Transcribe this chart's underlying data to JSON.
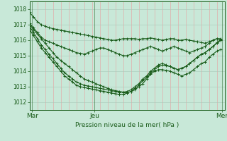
{
  "bg_color": "#c8e8d8",
  "plot_bg_color": "#c8e8d8",
  "grid_color_v": "#e8a0a0",
  "grid_color_h": "#a8c8b8",
  "line_color": "#1a5c1a",
  "marker": "+",
  "marker_size": 3,
  "xlabel": "Pression niveau de la mer( hPa )",
  "yticks": [
    1012,
    1013,
    1014,
    1015,
    1016,
    1017,
    1018
  ],
  "ylim": [
    1011.5,
    1018.5
  ],
  "xtick_labels": [
    "Mar",
    "Jeu",
    "Mer"
  ],
  "xtick_positions": [
    2,
    50,
    148
  ],
  "vline_positions": [
    2,
    50,
    148
  ],
  "total_steps": 168,
  "lines": [
    [
      1017.8,
      1017.5,
      1017.2,
      1017.0,
      1016.9,
      1016.8,
      1016.75,
      1016.7,
      1016.65,
      1016.6,
      1016.55,
      1016.5,
      1016.45,
      1016.4,
      1016.35,
      1016.3,
      1016.25,
      1016.2,
      1016.15,
      1016.1,
      1016.05,
      1016.0,
      1016.0,
      1016.05,
      1016.1,
      1016.1,
      1016.1,
      1016.1,
      1016.05,
      1016.1,
      1016.1,
      1016.15,
      1016.1,
      1016.05,
      1016.0,
      1016.05,
      1016.1,
      1016.1,
      1016.0,
      1016.0,
      1016.05,
      1016.0,
      1015.95,
      1015.9,
      1015.85,
      1015.8,
      1015.9,
      1016.0,
      1016.1,
      1016.1
    ],
    [
      1017.1,
      1016.8,
      1016.5,
      1016.2,
      1016.0,
      1015.9,
      1015.8,
      1015.7,
      1015.6,
      1015.5,
      1015.4,
      1015.3,
      1015.2,
      1015.15,
      1015.1,
      1015.2,
      1015.3,
      1015.4,
      1015.5,
      1015.5,
      1015.4,
      1015.3,
      1015.2,
      1015.1,
      1015.0,
      1015.0,
      1015.1,
      1015.2,
      1015.3,
      1015.4,
      1015.5,
      1015.6,
      1015.5,
      1015.4,
      1015.3,
      1015.4,
      1015.5,
      1015.6,
      1015.5,
      1015.4,
      1015.3,
      1015.2,
      1015.3,
      1015.4,
      1015.5,
      1015.6,
      1015.8,
      1016.0,
      1016.1,
      1016.0
    ],
    [
      1017.0,
      1016.7,
      1016.4,
      1016.1,
      1015.8,
      1015.5,
      1015.2,
      1014.9,
      1014.7,
      1014.5,
      1014.3,
      1014.1,
      1013.9,
      1013.7,
      1013.5,
      1013.4,
      1013.3,
      1013.2,
      1013.1,
      1013.0,
      1012.9,
      1012.8,
      1012.75,
      1012.7,
      1012.65,
      1012.6,
      1012.7,
      1012.8,
      1013.0,
      1013.2,
      1013.5,
      1013.8,
      1014.0,
      1014.1,
      1014.1,
      1014.05,
      1014.0,
      1013.9,
      1013.8,
      1013.7,
      1013.8,
      1013.9,
      1014.1,
      1014.3,
      1014.5,
      1014.6,
      1014.9,
      1015.1,
      1015.3,
      1015.4
    ],
    [
      1016.9,
      1016.5,
      1016.1,
      1015.7,
      1015.4,
      1015.1,
      1014.8,
      1014.5,
      1014.2,
      1013.9,
      1013.7,
      1013.5,
      1013.3,
      1013.2,
      1013.1,
      1013.05,
      1013.0,
      1012.95,
      1012.9,
      1012.85,
      1012.8,
      1012.75,
      1012.7,
      1012.65,
      1012.65,
      1012.7,
      1012.8,
      1013.0,
      1013.2,
      1013.5,
      1013.7,
      1014.0,
      1014.2,
      1014.4,
      1014.5,
      1014.4,
      1014.3,
      1014.2,
      1014.1,
      1014.2,
      1014.3,
      1014.5,
      1014.7,
      1014.9,
      1015.1,
      1015.2,
      1015.4,
      1015.6,
      1015.8,
      1016.0
    ],
    [
      1016.7,
      1016.3,
      1015.9,
      1015.5,
      1015.2,
      1014.9,
      1014.6,
      1014.3,
      1014.0,
      1013.7,
      1013.5,
      1013.3,
      1013.1,
      1013.0,
      1012.95,
      1012.9,
      1012.85,
      1012.8,
      1012.75,
      1012.7,
      1012.65,
      1012.6,
      1012.55,
      1012.5,
      1012.5,
      1012.6,
      1012.7,
      1012.9,
      1013.1,
      1013.4,
      1013.6,
      1013.9,
      1014.1,
      1014.3,
      1014.4,
      1014.35,
      1014.3,
      1014.2,
      1014.1,
      1014.2,
      1014.3,
      1014.5,
      1014.7,
      1014.9,
      1015.1,
      1015.2,
      1015.4,
      1015.6,
      1015.85,
      1016.05
    ]
  ],
  "x_steps": [
    0,
    3,
    6,
    9,
    12,
    15,
    18,
    21,
    24,
    27,
    30,
    33,
    36,
    39,
    42,
    45,
    48,
    51,
    54,
    57,
    60,
    63,
    66,
    69,
    72,
    75,
    78,
    81,
    84,
    87,
    90,
    93,
    96,
    99,
    102,
    105,
    108,
    111,
    114,
    117,
    120,
    123,
    126,
    129,
    132,
    135,
    138,
    141,
    144,
    147
  ]
}
